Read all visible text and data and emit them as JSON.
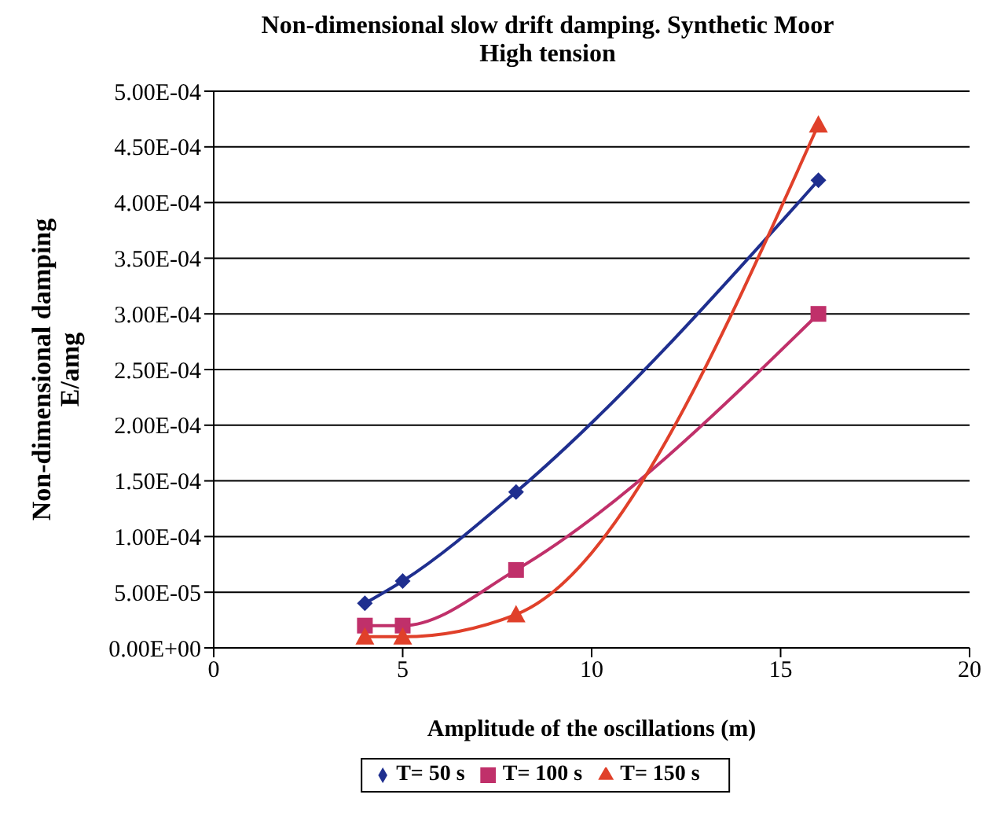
{
  "chart_data": {
    "type": "line",
    "title": "Non-dimensional slow drift damping. Synthetic Moor",
    "subtitle": "High tension",
    "xlabel": "Amplitude of the oscillations (m)",
    "ylabel": "Non-dimensional damping\nE/amg",
    "x": [
      4,
      5,
      8,
      16
    ],
    "series": [
      {
        "name": "T= 50 s",
        "color": "#1f2f8f",
        "marker": "diamond",
        "values": [
          4e-05,
          6e-05,
          0.00014,
          0.00042
        ]
      },
      {
        "name": "T= 100 s",
        "color": "#c0306a",
        "marker": "square",
        "values": [
          2e-05,
          2e-05,
          7e-05,
          0.0003
        ]
      },
      {
        "name": "T= 150 s",
        "color": "#e0402a",
        "marker": "triangle",
        "values": [
          1e-05,
          1e-05,
          3e-05,
          0.00047
        ]
      }
    ],
    "xlim": [
      0,
      20
    ],
    "xticks": [
      0,
      5,
      10,
      15,
      20
    ],
    "ylim": [
      0,
      0.0005
    ],
    "yticks": [
      {
        "value": 0,
        "label": "0.00E+00"
      },
      {
        "value": 5e-05,
        "label": "5.00E-05"
      },
      {
        "value": 0.0001,
        "label": "1.00E-04"
      },
      {
        "value": 0.00015,
        "label": "1.50E-04"
      },
      {
        "value": 0.0002,
        "label": "2.00E-04"
      },
      {
        "value": 0.00025,
        "label": "2.50E-04"
      },
      {
        "value": 0.0003,
        "label": "3.00E-04"
      },
      {
        "value": 0.00035,
        "label": "3.50E-04"
      },
      {
        "value": 0.0004,
        "label": "4.00E-04"
      },
      {
        "value": 0.00045,
        "label": "4.50E-04"
      },
      {
        "value": 0.0005,
        "label": "5.00E-04"
      }
    ],
    "grid": "y",
    "legend": "bottom",
    "line_style": "solid"
  }
}
